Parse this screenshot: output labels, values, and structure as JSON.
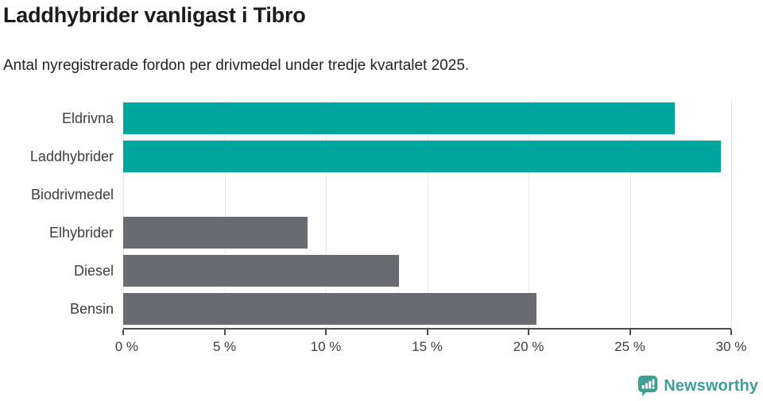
{
  "chart_data": {
    "type": "bar",
    "orientation": "horizontal",
    "title": "Laddhybrider vanligast i Tibro",
    "subtitle": "Antal nyregistrerade fordon per drivmedel under tredje kvartalet 2025.",
    "categories": [
      "Eldrivna",
      "Laddhybrider",
      "Biodrivmedel",
      "Elhybrider",
      "Diesel",
      "Bensin"
    ],
    "values": [
      27.2,
      29.5,
      0,
      9.1,
      13.6,
      20.4
    ],
    "bar_colors": [
      "#00a59c",
      "#00a59c",
      "#6a6a71",
      "#6a6a71",
      "#6a6a71",
      "#6a6a71"
    ],
    "xlim": [
      0,
      30
    ],
    "x_tick_values": [
      0,
      5,
      10,
      15,
      20,
      25,
      30
    ],
    "x_tick_labels": [
      "0 %",
      "5 %",
      "10 %",
      "15 %",
      "20 %",
      "25 %",
      "30 %"
    ],
    "grid": "vertical",
    "legend": "none"
  },
  "colors": {
    "highlight": "#00a59c",
    "neutral": "#6a6a71",
    "axis": "#4b4b52",
    "gridline": "#e6e6e6",
    "text": "#3c3c42",
    "brand": "#3e9e96"
  },
  "footer": {
    "brand": "Newsworthy"
  }
}
